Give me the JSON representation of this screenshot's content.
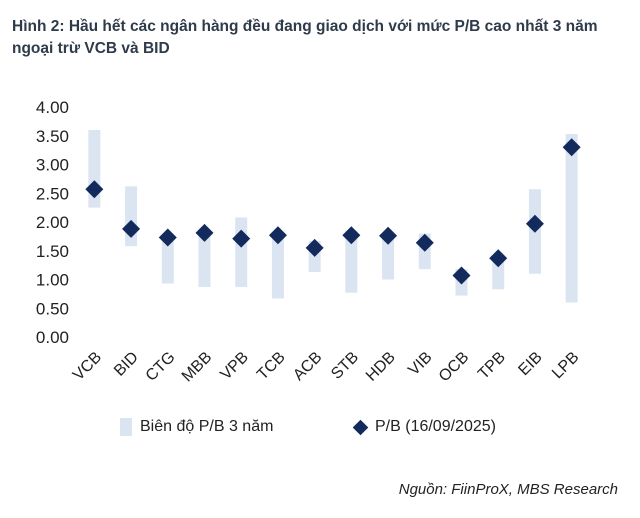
{
  "title": "Hình 2: Hầu hết các ngân hàng đều đang giao dịch với mức P/B cao nhất 3 năm ngoại trừ VCB và BID",
  "source": "Nguồn: FiinProX, MBS Research",
  "colors": {
    "range": "#dbe5f1",
    "marker": "#132a5c",
    "title": "#2f3b4a"
  },
  "chart_data": {
    "type": "scatter",
    "categories": [
      "VCB",
      "BID",
      "CTG",
      "MBB",
      "VPB",
      "TCB",
      "ACB",
      "STB",
      "HDB",
      "VIB",
      "OCB",
      "TPB",
      "EIB",
      "LPB"
    ],
    "ylim": [
      0,
      4
    ],
    "yticks": [
      "0.00",
      "0.50",
      "1.00",
      "1.50",
      "2.00",
      "2.50",
      "3.00",
      "3.50",
      "4.00"
    ],
    "series": [
      {
        "name": "Biên độ P/B 3 năm",
        "type": "range",
        "low": [
          2.25,
          1.58,
          0.93,
          0.87,
          0.87,
          0.67,
          1.13,
          0.77,
          1.0,
          1.18,
          0.72,
          0.83,
          1.1,
          0.6
        ],
        "high": [
          3.6,
          2.62,
          1.78,
          1.83,
          2.08,
          1.8,
          1.67,
          1.85,
          1.82,
          1.8,
          1.18,
          1.4,
          2.57,
          3.53
        ]
      },
      {
        "name": "P/B (16/09/2025)",
        "type": "scatter",
        "values": [
          2.57,
          1.88,
          1.73,
          1.81,
          1.71,
          1.77,
          1.55,
          1.77,
          1.76,
          1.64,
          1.07,
          1.37,
          1.97,
          3.3
        ]
      }
    ],
    "legend_position": "bottom",
    "grid": false
  }
}
